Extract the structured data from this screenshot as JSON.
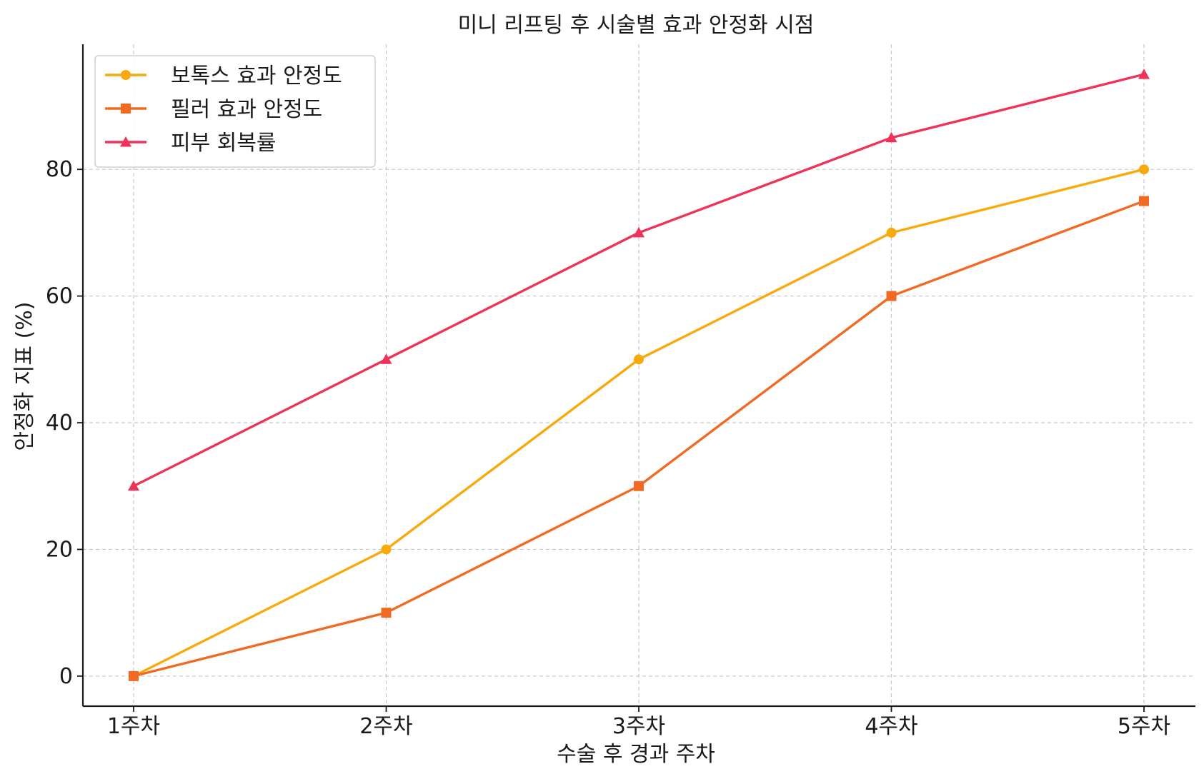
{
  "chart_data": {
    "type": "line",
    "title": "미니 리프팅 후 시술별 효과 안정화 시점",
    "xlabel": "수술 후 경과 주차",
    "ylabel": "안정화 지표 (%)",
    "categories": [
      "1주차",
      "2주차",
      "3주차",
      "4주차",
      "5주차"
    ],
    "ylim": [
      -4.75,
      99.75
    ],
    "yticks": [
      0,
      20,
      40,
      60,
      80
    ],
    "grid": true,
    "legend_position": "top-left",
    "series": [
      {
        "name": "보톡스 효과 안정도",
        "values": [
          0,
          20,
          50,
          70,
          80
        ],
        "color": "#f7a90e",
        "marker": "circle"
      },
      {
        "name": "필러 효과 안정도",
        "values": [
          0,
          10,
          30,
          60,
          75
        ],
        "color": "#f06a23",
        "marker": "square"
      },
      {
        "name": "피부 회복률",
        "values": [
          30,
          50,
          70,
          85,
          95
        ],
        "color": "#ef3358",
        "marker": "triangle"
      }
    ]
  }
}
